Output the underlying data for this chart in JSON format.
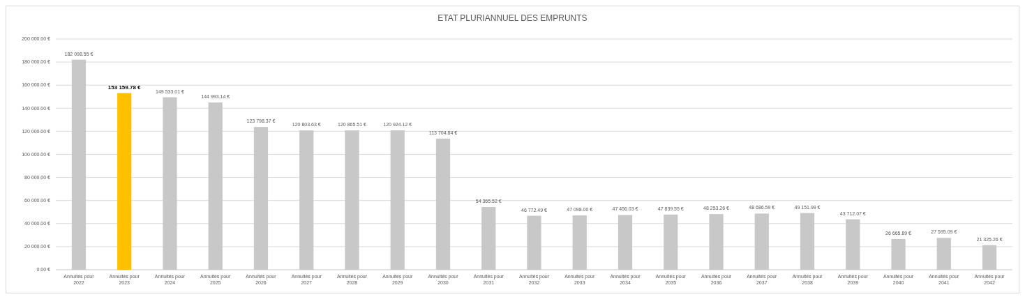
{
  "chart_data": {
    "type": "bar",
    "title": "ETAT PLURIANNUEL DES EMPRUNTS",
    "categories": [
      "Annuités pour 2022",
      "Annuités pour 2023",
      "Annuités pour 2024",
      "Annuités pour 2025",
      "Annuités pour 2026",
      "Annuités pour 2027",
      "Annuités pour 2028",
      "Annuités pour 2029",
      "Annuités pour 2030",
      "Annuités pour 2031",
      "Annuités pour 2032",
      "Annuités pour 2033",
      "Annuités pour 2034",
      "Annuités pour 2035",
      "Annuités pour 2036",
      "Annuités pour 2037",
      "Annuités pour 2038",
      "Annuités pour 2039",
      "Annuités pour 2040",
      "Annuités pour 2041",
      "Annuités pour 2042"
    ],
    "values": [
      182098.55,
      153159.78,
      149533.01,
      144993.14,
      123798.37,
      120803.63,
      120865.51,
      120924.12,
      113704.84,
      54365.52,
      46772.49,
      47098.0,
      47456.03,
      47839.55,
      48253.26,
      48686.59,
      49151.99,
      43712.07,
      26665.89,
      27595.09,
      21325.26
    ],
    "value_labels": [
      "182 098.55 €",
      "153 159.78 €",
      "149 533.01 €",
      "144 993.14 €",
      "123 798.37 €",
      "120 803.63 €",
      "120 865.51 €",
      "120 924.12 €",
      "113 704.84 €",
      "54 365.52 €",
      "46 772.49 €",
      "47 098.00 €",
      "47 456.03 €",
      "47 839.55 €",
      "48 253.26 €",
      "48 686.59 €",
      "49 151.99 €",
      "43 712.07 €",
      "26 665.89 €",
      "27 595.09 €",
      "21 325.26 €"
    ],
    "colors": [
      "#c8c8c8",
      "#ffc000",
      "#c8c8c8",
      "#c8c8c8",
      "#c8c8c8",
      "#c8c8c8",
      "#c8c8c8",
      "#c8c8c8",
      "#c8c8c8",
      "#c8c8c8",
      "#c8c8c8",
      "#c8c8c8",
      "#c8c8c8",
      "#c8c8c8",
      "#c8c8c8",
      "#c8c8c8",
      "#c8c8c8",
      "#c8c8c8",
      "#c8c8c8",
      "#c8c8c8",
      "#c8c8c8"
    ],
    "ylim": [
      0,
      200000
    ],
    "yticks": [
      {
        "value": 0,
        "label": "0.00 €"
      },
      {
        "value": 20000,
        "label": "20 000.00 €"
      },
      {
        "value": 40000,
        "label": "40 000.00 €"
      },
      {
        "value": 60000,
        "label": "60 000.00 €"
      },
      {
        "value": 80000,
        "label": "80 000.00 €"
      },
      {
        "value": 100000,
        "label": "100 000.00 €"
      },
      {
        "value": 120000,
        "label": "120 000.00 €"
      },
      {
        "value": 140000,
        "label": "140 000.00 €"
      },
      {
        "value": 160000,
        "label": "160 000.00 €"
      },
      {
        "value": 180000,
        "label": "180 000.00 €"
      },
      {
        "value": 200000,
        "label": "200 000.00 €"
      }
    ],
    "grid": "y"
  }
}
